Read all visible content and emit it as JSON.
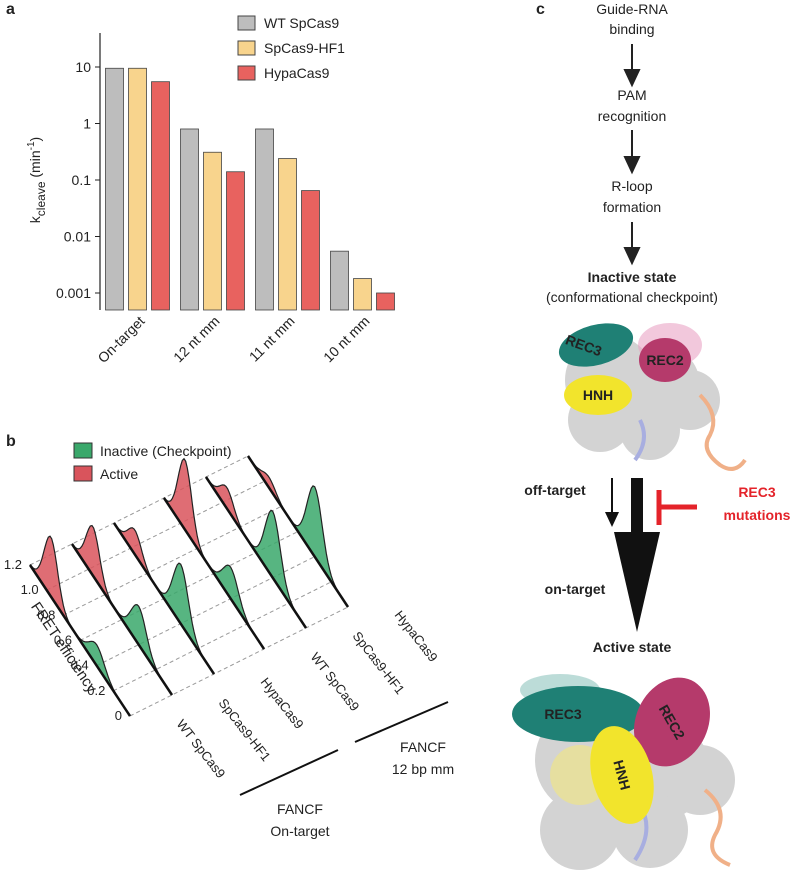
{
  "panel_labels": [
    "a",
    "b",
    "c"
  ],
  "chart_data": {
    "type": "bar",
    "log": true,
    "ylabel": [
      "k",
      "cleave",
      " (min",
      "-1",
      ")"
    ],
    "categories": [
      "On-target",
      "12 nt mm",
      "11 nt mm",
      "10 nt mm"
    ],
    "series": [
      {
        "name": "WT SpCas9",
        "color": "#bdbdbd",
        "values": [
          9.5,
          0.8,
          0.8,
          0.0055
        ]
      },
      {
        "name": "SpCas9-HF1",
        "color": "#f8d48d",
        "values": [
          9.5,
          0.31,
          0.24,
          0.0018
        ]
      },
      {
        "name": "HypaCas9",
        "color": "#e8625f",
        "values": [
          5.5,
          0.14,
          0.065,
          0.001
        ]
      }
    ],
    "ylim": [
      0.0005,
      40
    ],
    "yticks": [
      0.001,
      0.01,
      0.1,
      1,
      10
    ],
    "legend": "upper right"
  },
  "panel_b": {
    "legend": [
      {
        "name": "Inactive (Checkpoint)",
        "color": "#3aa86b"
      },
      {
        "name": "Active",
        "color": "#d9545c"
      }
    ],
    "axis_label": "FRET efficiency",
    "axis_ticks": [
      "0",
      "0.2",
      "0.4",
      "0.6",
      "0.8",
      "1.0",
      "1.2"
    ],
    "lanes": [
      "WT SpCas9",
      "SpCas9-HF1",
      "HypaCas9",
      "WT SpCas9",
      "SpCas9-HF1",
      "HypaCas9"
    ],
    "groups": [
      [
        "FANCF",
        "On-target"
      ],
      [
        "FANCF",
        "12 bp mm"
      ]
    ]
  },
  "panel_c": {
    "steps": [
      [
        "Guide-RNA",
        "binding"
      ],
      [
        "PAM",
        "recognition"
      ],
      [
        "R-loop",
        "formation"
      ]
    ],
    "inactive_title": "Inactive state",
    "inactive_subtitle": "(conformational checkpoint)",
    "domains": [
      "REC3",
      "REC2",
      "HNH"
    ],
    "off_target": "off-target",
    "on_target": "on-target",
    "mutation": [
      "REC3",
      "mutations"
    ],
    "active_title": "Active state"
  }
}
